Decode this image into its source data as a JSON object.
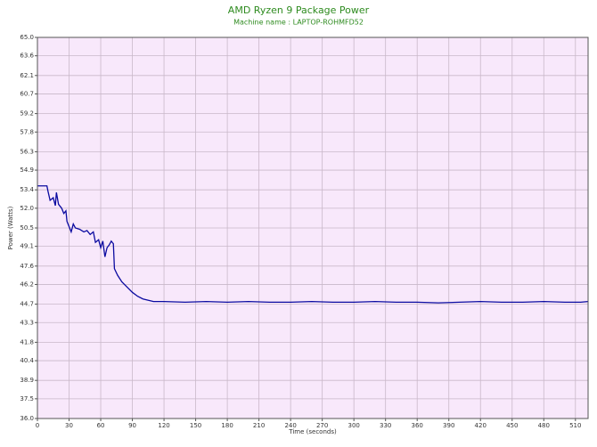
{
  "chart_data": {
    "type": "line",
    "title": "AMD Ryzen 9 Package Power",
    "subtitle": "Machine name : LAPTOP-ROHMFD52",
    "x_label": "Time (seconds)",
    "y_label": "Power (Watts)",
    "x": [
      0,
      5,
      9,
      10,
      12,
      15,
      17,
      18,
      20,
      23,
      25,
      27,
      28,
      30,
      32,
      34,
      36,
      40,
      44,
      47,
      50,
      53,
      55,
      58,
      60,
      62,
      64,
      66,
      68,
      70,
      72,
      73,
      76,
      80,
      85,
      90,
      95,
      100,
      110,
      120,
      140,
      160,
      180,
      200,
      220,
      240,
      260,
      280,
      300,
      320,
      340,
      360,
      380,
      400,
      420,
      440,
      460,
      480,
      500,
      515,
      522
    ],
    "values": [
      53.7,
      53.7,
      53.7,
      53.3,
      52.6,
      52.8,
      52.2,
      53.2,
      52.3,
      52.0,
      51.6,
      51.8,
      51.0,
      50.6,
      50.2,
      50.8,
      50.5,
      50.4,
      50.2,
      50.3,
      50.0,
      50.2,
      49.4,
      49.6,
      49.0,
      49.5,
      48.3,
      49.0,
      49.2,
      49.5,
      49.3,
      47.4,
      46.9,
      46.4,
      46.0,
      45.6,
      45.3,
      45.1,
      44.9,
      44.9,
      44.85,
      44.9,
      44.85,
      44.9,
      44.85,
      44.85,
      44.9,
      44.85,
      44.85,
      44.9,
      44.85,
      44.85,
      44.8,
      44.85,
      44.9,
      44.85,
      44.85,
      44.9,
      44.85,
      44.85,
      44.9
    ],
    "color": "#0a0aa0",
    "background": "#f8e8fb",
    "grid": true,
    "xlim": [
      0,
      522
    ],
    "xticks": [
      0,
      30,
      60,
      90,
      120,
      150,
      180,
      210,
      240,
      270,
      300,
      330,
      360,
      390,
      420,
      450,
      480,
      510
    ],
    "ylim": [
      36,
      65
    ],
    "yticks": [
      {
        "value": 65,
        "label": "65.0"
      },
      63.6,
      62.1,
      60.7,
      59.2,
      57.8,
      56.3,
      54.9,
      53.4,
      {
        "value": 52,
        "label": "52.0"
      },
      50.5,
      49.1,
      47.6,
      46.2,
      44.7,
      43.3,
      41.8,
      40.4,
      38.9,
      37.5,
      {
        "value": 36,
        "label": "36.0"
      }
    ]
  }
}
